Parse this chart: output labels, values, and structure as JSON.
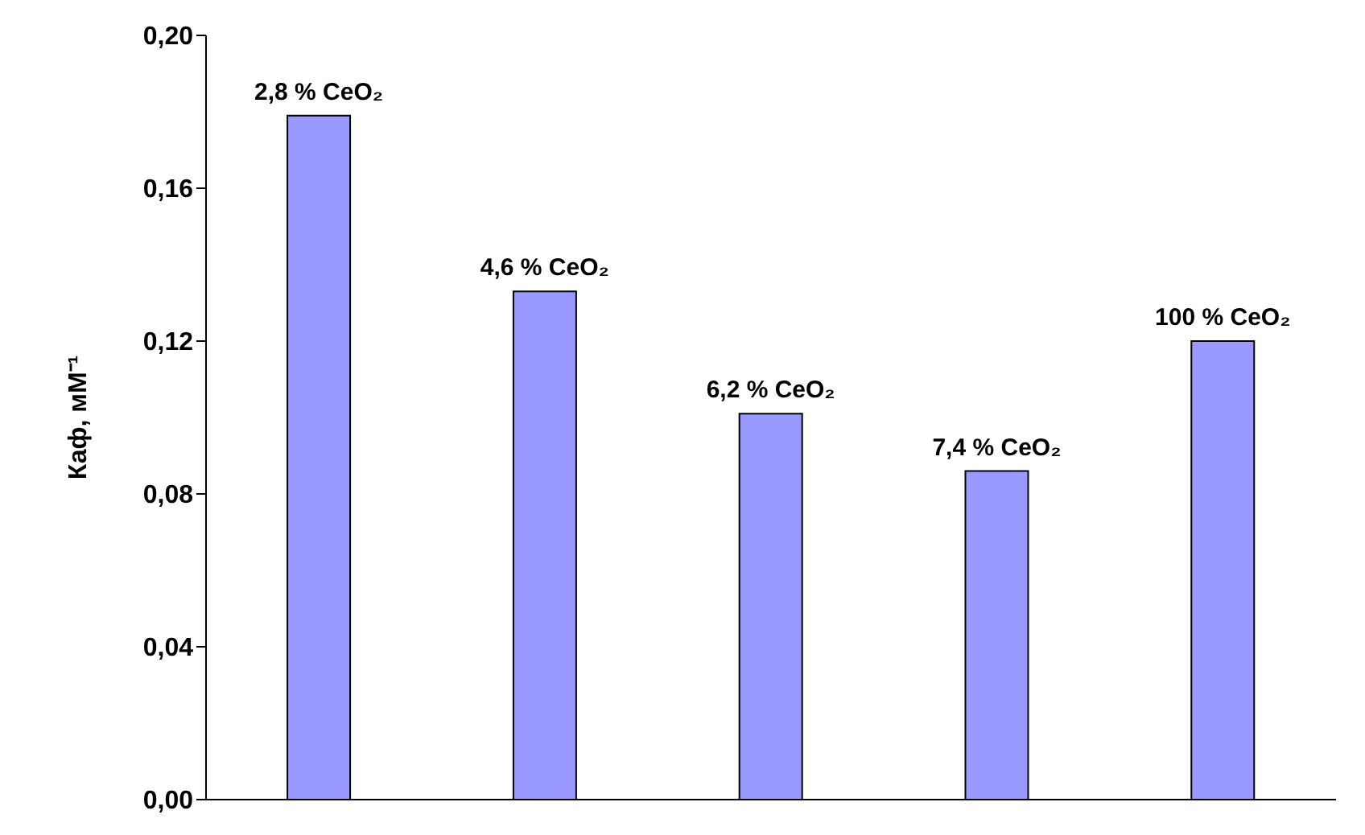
{
  "chart_data": {
    "type": "bar",
    "ylabel": "Каф, мМ⁻¹",
    "categories": [
      "2,8 % CeO₂",
      "4,6 % CeO₂",
      "6,2 % CeO₂",
      "7,4 % CeO₂",
      "100 % CeO₂"
    ],
    "values": [
      0.179,
      0.133,
      0.101,
      0.086,
      0.12
    ],
    "color": "#9999ff",
    "ylim": [
      0,
      0.2
    ],
    "yticks": [
      {
        "value": 0,
        "label": "0,00"
      },
      {
        "value": 0.04,
        "label": "0,04"
      },
      {
        "value": 0.08,
        "label": "0,08"
      },
      {
        "value": 0.12,
        "label": "0,12"
      },
      {
        "value": 0.16,
        "label": "0,16"
      },
      {
        "value": 0.2,
        "label": "0,20"
      }
    ],
    "grid": false,
    "legend": false
  }
}
